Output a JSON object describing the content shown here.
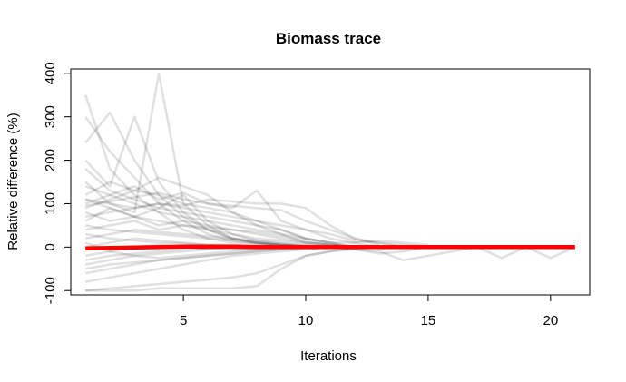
{
  "chart_data": {
    "type": "line",
    "title": "Biomass trace",
    "xlabel": "Iterations",
    "ylabel": "Relative difference (%)",
    "xlim": [
      0.4,
      21.6
    ],
    "ylim": [
      -110,
      410
    ],
    "xticks": [
      5,
      10,
      15,
      20
    ],
    "yticks": [
      -100,
      0,
      100,
      200,
      300,
      400
    ],
    "grid": false,
    "legend": "none",
    "trace_color": "#000000",
    "trace_opacity": 0.12,
    "mean_color": "#ff0000",
    "series": [
      {
        "x": [
          1,
          2,
          3,
          4,
          5,
          6,
          7,
          8,
          9,
          10,
          11,
          12,
          13,
          14,
          15
        ],
        "values": [
          350,
          180,
          120,
          80,
          40,
          20,
          10,
          5,
          2,
          1,
          0,
          0,
          0,
          0,
          0
        ]
      },
      {
        "x": [
          1,
          2,
          3,
          4,
          5,
          6,
          7,
          8,
          9,
          10,
          11,
          12,
          13
        ],
        "values": [
          300,
          220,
          160,
          100,
          60,
          30,
          15,
          8,
          4,
          2,
          1,
          0,
          0
        ]
      },
      {
        "x": [
          1,
          2,
          3,
          4,
          5,
          6,
          7,
          8,
          9,
          10,
          11,
          12,
          13
        ],
        "values": [
          240,
          310,
          200,
          120,
          70,
          40,
          20,
          10,
          5,
          2,
          0,
          0,
          0
        ]
      },
      {
        "x": [
          1,
          2,
          3,
          4,
          5,
          6,
          7,
          8,
          9,
          10,
          11,
          12
        ],
        "values": [
          200,
          140,
          300,
          150,
          80,
          40,
          20,
          10,
          5,
          0,
          0,
          0
        ]
      },
      {
        "x": [
          1,
          2,
          3,
          4,
          5,
          6,
          7,
          8,
          9,
          10,
          11,
          12
        ],
        "values": [
          150,
          100,
          80,
          400,
          100,
          50,
          20,
          10,
          5,
          2,
          0,
          0
        ]
      },
      {
        "x": [
          1,
          2,
          3,
          4,
          5,
          6,
          7,
          8,
          9,
          10,
          11,
          12
        ],
        "values": [
          180,
          130,
          110,
          90,
          120,
          60,
          30,
          15,
          8,
          4,
          0,
          0
        ]
      },
      {
        "x": [
          1,
          2,
          3,
          4,
          5,
          6,
          7,
          8,
          9,
          10,
          11,
          12,
          13
        ],
        "values": [
          120,
          150,
          130,
          160,
          140,
          120,
          80,
          50,
          30,
          10,
          5,
          0,
          0
        ]
      },
      {
        "x": [
          1,
          2,
          3,
          4,
          5,
          6,
          7,
          8,
          9,
          10,
          11,
          12,
          13
        ],
        "values": [
          100,
          120,
          140,
          110,
          125,
          100,
          90,
          130,
          60,
          40,
          20,
          10,
          0
        ]
      },
      {
        "x": [
          1,
          2,
          3,
          4,
          5,
          6,
          7,
          8,
          9,
          10,
          11,
          12,
          13
        ],
        "values": [
          110,
          100,
          90,
          100,
          95,
          110,
          105,
          100,
          100,
          90,
          50,
          20,
          5
        ]
      },
      {
        "x": [
          1,
          2,
          3,
          4,
          5,
          6,
          7,
          8,
          9,
          10,
          11,
          12
        ],
        "values": [
          90,
          110,
          130,
          120,
          100,
          90,
          80,
          60,
          40,
          20,
          10,
          0
        ]
      },
      {
        "x": [
          1,
          2,
          3,
          4,
          5,
          6,
          7,
          8,
          9,
          10,
          11,
          12
        ],
        "values": [
          80,
          60,
          70,
          90,
          80,
          70,
          60,
          50,
          40,
          20,
          10,
          0
        ]
      },
      {
        "x": [
          1,
          2,
          3,
          4,
          5,
          6,
          7,
          8,
          9,
          10,
          11,
          12
        ],
        "values": [
          60,
          90,
          70,
          50,
          60,
          50,
          40,
          30,
          20,
          10,
          5,
          0
        ]
      },
      {
        "x": [
          1,
          2,
          3,
          4,
          5,
          6,
          7,
          8,
          9,
          10,
          11,
          12
        ],
        "values": [
          40,
          50,
          60,
          40,
          50,
          40,
          30,
          20,
          15,
          10,
          5,
          0
        ]
      },
      {
        "x": [
          1,
          2,
          3,
          4,
          5,
          6,
          7,
          8,
          9,
          10,
          11,
          12
        ],
        "values": [
          20,
          30,
          40,
          35,
          30,
          25,
          20,
          15,
          10,
          5,
          0,
          0
        ]
      },
      {
        "x": [
          1,
          2,
          3,
          4,
          5,
          6,
          7,
          8,
          9,
          10,
          11,
          12
        ],
        "values": [
          0,
          10,
          20,
          15,
          10,
          5,
          5,
          0,
          0,
          0,
          0,
          0
        ]
      },
      {
        "x": [
          1,
          2,
          3,
          4,
          5,
          6,
          7,
          8,
          9,
          10,
          11,
          12
        ],
        "values": [
          -20,
          -10,
          0,
          5,
          0,
          -5,
          -5,
          0,
          0,
          0,
          0,
          0
        ]
      },
      {
        "x": [
          1,
          2,
          3,
          4,
          5,
          6,
          7,
          8,
          9,
          10,
          11,
          12
        ],
        "values": [
          -40,
          -30,
          -20,
          -15,
          -10,
          -5,
          -5,
          -5,
          0,
          0,
          0,
          0
        ]
      },
      {
        "x": [
          1,
          2,
          3,
          4,
          5,
          6,
          7,
          8,
          9,
          10,
          11,
          12
        ],
        "values": [
          -60,
          -50,
          -40,
          -30,
          -25,
          -20,
          -15,
          -10,
          -5,
          0,
          0,
          0
        ]
      },
      {
        "x": [
          1,
          2,
          3,
          4,
          5,
          6,
          7,
          8,
          9,
          10,
          11,
          12
        ],
        "values": [
          -80,
          -70,
          -60,
          -50,
          -40,
          -30,
          -20,
          -15,
          -10,
          -5,
          0,
          0
        ]
      },
      {
        "x": [
          1,
          2,
          3,
          4,
          5,
          6,
          7,
          8,
          9,
          10,
          11,
          12,
          13
        ],
        "values": [
          -100,
          -100,
          -100,
          -95,
          -95,
          -95,
          -95,
          -90,
          -50,
          -20,
          -10,
          -5,
          0
        ]
      },
      {
        "x": [
          1,
          2,
          3,
          4,
          5,
          6,
          7,
          8,
          9,
          10,
          11,
          12,
          13
        ],
        "values": [
          -100,
          -95,
          -90,
          -85,
          -80,
          -75,
          -70,
          -60,
          -40,
          -20,
          -10,
          0,
          0
        ]
      },
      {
        "x": [
          1,
          2,
          3,
          4,
          5,
          6,
          7,
          8,
          9,
          10,
          11,
          12,
          13,
          14,
          15,
          16,
          17,
          18,
          19,
          20,
          21
        ],
        "values": [
          30,
          20,
          15,
          10,
          8,
          5,
          3,
          2,
          1,
          0,
          0,
          -5,
          -10,
          -30,
          -20,
          -10,
          0,
          -25,
          0,
          -25,
          0
        ]
      },
      {
        "x": [
          1,
          2,
          3,
          4,
          5,
          6,
          7,
          8,
          9,
          10,
          11,
          12,
          13,
          14,
          15,
          16,
          17,
          18,
          19,
          20,
          21
        ],
        "values": [
          -30,
          -20,
          -15,
          -10,
          -5,
          -3,
          0,
          0,
          0,
          0,
          0,
          -5,
          -15,
          -10,
          0,
          0,
          0,
          0,
          0,
          0,
          0
        ]
      },
      {
        "x": [
          1,
          2,
          3,
          4,
          5,
          6,
          7,
          8,
          9,
          10,
          11,
          12,
          13,
          14,
          15
        ],
        "values": [
          140,
          120,
          100,
          80,
          70,
          60,
          50,
          40,
          30,
          20,
          10,
          10,
          15,
          10,
          5
        ]
      },
      {
        "x": [
          1,
          2,
          3,
          4,
          5,
          6,
          7,
          8,
          9,
          10,
          11,
          12,
          13,
          14,
          15
        ],
        "values": [
          70,
          80,
          90,
          100,
          90,
          80,
          70,
          60,
          50,
          40,
          30,
          15,
          10,
          5,
          0
        ]
      },
      {
        "x": [
          1,
          2,
          3,
          4,
          5,
          6,
          7,
          8,
          9,
          10,
          11,
          12
        ],
        "values": [
          50,
          40,
          35,
          30,
          25,
          20,
          15,
          10,
          5,
          0,
          0,
          0
        ]
      },
      {
        "x": [
          1,
          2,
          3,
          4,
          5,
          6,
          7,
          8,
          9,
          10,
          11,
          12
        ],
        "values": [
          10,
          -10,
          -20,
          -25,
          -20,
          -15,
          -10,
          -5,
          0,
          0,
          0,
          0
        ]
      },
      {
        "x": [
          1,
          2,
          3,
          4,
          5,
          6,
          7,
          8,
          9,
          10,
          11,
          12
        ],
        "values": [
          110,
          90,
          70,
          60,
          50,
          45,
          40,
          35,
          25,
          15,
          5,
          0
        ]
      },
      {
        "x": [
          1,
          2,
          3,
          4,
          5,
          6,
          7,
          8,
          9,
          10,
          11,
          12
        ],
        "values": [
          -50,
          -40,
          -35,
          -30,
          -25,
          -20,
          -15,
          -10,
          -5,
          -2,
          0,
          0
        ]
      },
      {
        "x": [
          1,
          2,
          3,
          4,
          5,
          6,
          7,
          8,
          9,
          10,
          11,
          12,
          13,
          14
        ],
        "values": [
          95,
          105,
          115,
          125,
          110,
          100,
          95,
          90,
          85,
          60,
          40,
          20,
          10,
          0
        ]
      }
    ],
    "mean": {
      "x": [
        1,
        2,
        3,
        4,
        5,
        6,
        7,
        8,
        9,
        10,
        11,
        12,
        13,
        14,
        15,
        16,
        17,
        18,
        19,
        20,
        21
      ],
      "values": [
        -3,
        -2,
        -1,
        0,
        1,
        1,
        1,
        0,
        0,
        0,
        0,
        0,
        0,
        0,
        0,
        0,
        0,
        0,
        0,
        0,
        0
      ]
    }
  }
}
